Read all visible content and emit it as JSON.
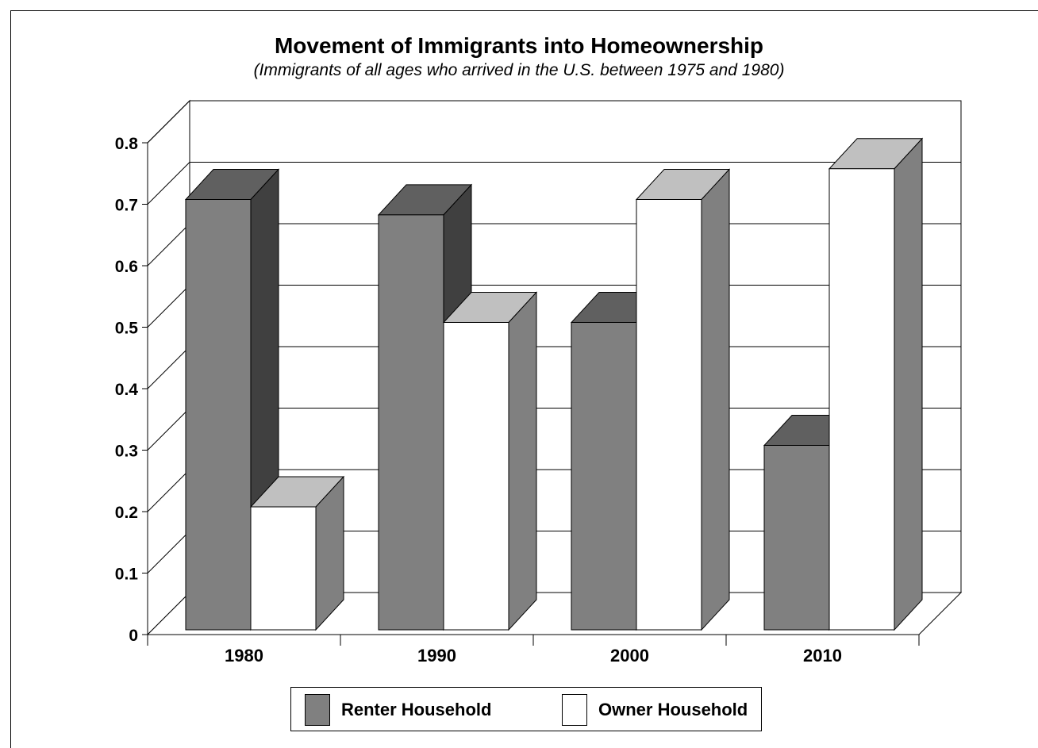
{
  "chart_data": {
    "type": "bar",
    "title": "Movement of Immigrants into Homeownership",
    "subtitle": "(Immigrants of all ages who arrived in the U.S. between 1975 and 1980)",
    "categories": [
      "1980",
      "1990",
      "2000",
      "2010"
    ],
    "series": [
      {
        "name": "Renter Household",
        "values": [
          0.7,
          0.675,
          0.5,
          0.3
        ]
      },
      {
        "name": "Owner Household",
        "values": [
          0.2,
          0.5,
          0.7,
          0.75
        ]
      }
    ],
    "yticks": [
      "0",
      "0.1",
      "0.2",
      "0.3",
      "0.4",
      "0.5",
      "0.6",
      "0.7",
      "0.8"
    ],
    "ylim": [
      0,
      0.8
    ],
    "grid": true,
    "legend_position": "bottom",
    "three_d": true,
    "colors": {
      "renter_front": "#808080",
      "renter_top": "#606060",
      "renter_side": "#404040",
      "owner_front": "#ffffff",
      "owner_top": "#c0c0c0",
      "owner_side": "#808080"
    }
  }
}
